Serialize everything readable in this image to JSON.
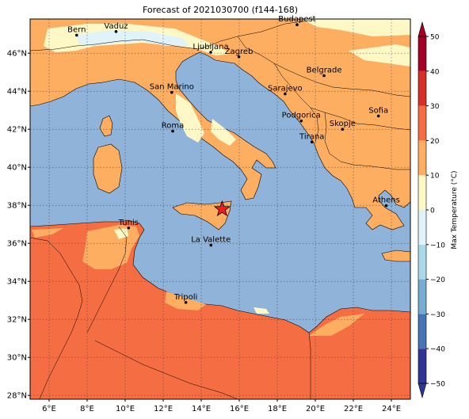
{
  "title": "Forecast of 2021030700 (f144-168)",
  "map": {
    "lon_range": [
      5,
      25
    ],
    "lat_range": [
      27.8,
      47.8
    ],
    "lon_ticks": [
      "6°E",
      "8°E",
      "10°E",
      "12°E",
      "14°E",
      "16°E",
      "18°E",
      "20°E",
      "22°E",
      "24°E"
    ],
    "lon_tick_values": [
      6,
      8,
      10,
      12,
      14,
      16,
      18,
      20,
      22,
      24
    ],
    "lat_ticks": [
      "28°N",
      "30°N",
      "32°N",
      "34°N",
      "36°N",
      "38°N",
      "40°N",
      "42°N",
      "44°N",
      "46°N"
    ],
    "lat_tick_values": [
      28,
      30,
      32,
      34,
      36,
      38,
      40,
      42,
      44,
      46
    ],
    "gridlines": true,
    "sea_color": "#8fb3d9",
    "marker": {
      "name": "star",
      "lon": 15.1,
      "lat": 37.8,
      "color": "#e8211e"
    }
  },
  "cities": [
    {
      "name": "Bern",
      "lon": 7.45,
      "lat": 46.95
    },
    {
      "name": "Vaduz",
      "lon": 9.52,
      "lat": 47.14
    },
    {
      "name": "Budapest",
      "lon": 19.04,
      "lat": 47.5
    },
    {
      "name": "Ljubljana",
      "lon": 14.5,
      "lat": 46.05
    },
    {
      "name": "Zagreb",
      "lon": 15.98,
      "lat": 45.81
    },
    {
      "name": "Belgrade",
      "lon": 20.46,
      "lat": 44.82
    },
    {
      "name": "San Marino",
      "lon": 12.45,
      "lat": 43.94
    },
    {
      "name": "Sarajevo",
      "lon": 18.41,
      "lat": 43.86
    },
    {
      "name": "Sofia",
      "lon": 23.32,
      "lat": 42.7
    },
    {
      "name": "Podgorica",
      "lon": 19.26,
      "lat": 42.44
    },
    {
      "name": "Skopje",
      "lon": 21.43,
      "lat": 42.0
    },
    {
      "name": "Roma",
      "lon": 12.5,
      "lat": 41.9
    },
    {
      "name": "Tirana",
      "lon": 19.82,
      "lat": 41.33
    },
    {
      "name": "Athens",
      "lon": 23.73,
      "lat": 37.98
    },
    {
      "name": "Tunis",
      "lon": 10.18,
      "lat": 36.81
    },
    {
      "name": "La Valette",
      "lon": 14.51,
      "lat": 35.9
    },
    {
      "name": "Tripoli",
      "lon": 13.19,
      "lat": 32.89
    }
  ],
  "colorbar": {
    "label": "Max Temperature (°C)",
    "ticks": [
      "−50",
      "−40",
      "−30",
      "−20",
      "−10",
      "0",
      "10",
      "20",
      "30",
      "40",
      "50"
    ],
    "tick_values": [
      -50,
      -40,
      -30,
      -20,
      -10,
      0,
      10,
      20,
      30,
      40,
      50
    ],
    "range": [
      -50,
      50
    ],
    "levels": [
      {
        "from": -50,
        "to": -40,
        "color": "#313695"
      },
      {
        "from": -40,
        "to": -30,
        "color": "#4575b4"
      },
      {
        "from": -30,
        "to": -20,
        "color": "#74add1"
      },
      {
        "from": -20,
        "to": -10,
        "color": "#abd9e9"
      },
      {
        "from": -10,
        "to": 0,
        "color": "#e0f3f8"
      },
      {
        "from": 0,
        "to": 10,
        "color": "#fef8c7"
      },
      {
        "from": 10,
        "to": 20,
        "color": "#fdae61"
      },
      {
        "from": 20,
        "to": 30,
        "color": "#f46d43"
      },
      {
        "from": 30,
        "to": 40,
        "color": "#d73027"
      },
      {
        "from": 40,
        "to": 50,
        "color": "#a50026"
      }
    ]
  }
}
